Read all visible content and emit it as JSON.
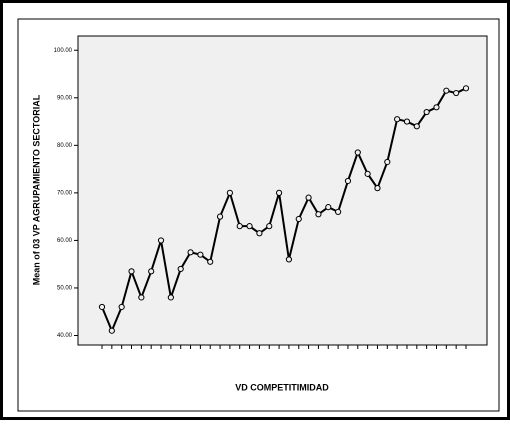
{
  "chart_data": {
    "type": "line",
    "x_label": "VD COMPETITIMIDAD",
    "y_label": "Mean of 03 VP AGRUPAMIENTO SECTORIAL",
    "categories": [
      null,
      null,
      null,
      null,
      null,
      null,
      null,
      null,
      null,
      null,
      null,
      null,
      null,
      null,
      null,
      null,
      null,
      null,
      null,
      null,
      null,
      null,
      null,
      null,
      null,
      null,
      null,
      null,
      null,
      null,
      null,
      null,
      null,
      null,
      null,
      null,
      null,
      null
    ],
    "series": [
      {
        "color": "#000000",
        "values": [
          46,
          41,
          46,
          53.5,
          48,
          53.5,
          60,
          48,
          54,
          57.5,
          57,
          55.5,
          65,
          70,
          63,
          63,
          61.5,
          63,
          70,
          56,
          64.5,
          69,
          65.5,
          67,
          66,
          72.5,
          78.5,
          74,
          71,
          76.5,
          85.5,
          85,
          84,
          87,
          88,
          91.5,
          91,
          92
        ]
      }
    ],
    "ylim": [
      38,
      103
    ],
    "yticks": [
      {
        "value": 40,
        "label": "40.00"
      },
      {
        "value": 50,
        "label": "50.00"
      },
      {
        "value": 60,
        "label": "60.00"
      },
      {
        "value": 70,
        "label": "70.00"
      },
      {
        "value": 80,
        "label": "80.00"
      },
      {
        "value": 90,
        "label": "90.00"
      },
      {
        "value": 100,
        "label": "100.00"
      }
    ],
    "background": "#f0f0f0",
    "marker": "open-circle"
  }
}
